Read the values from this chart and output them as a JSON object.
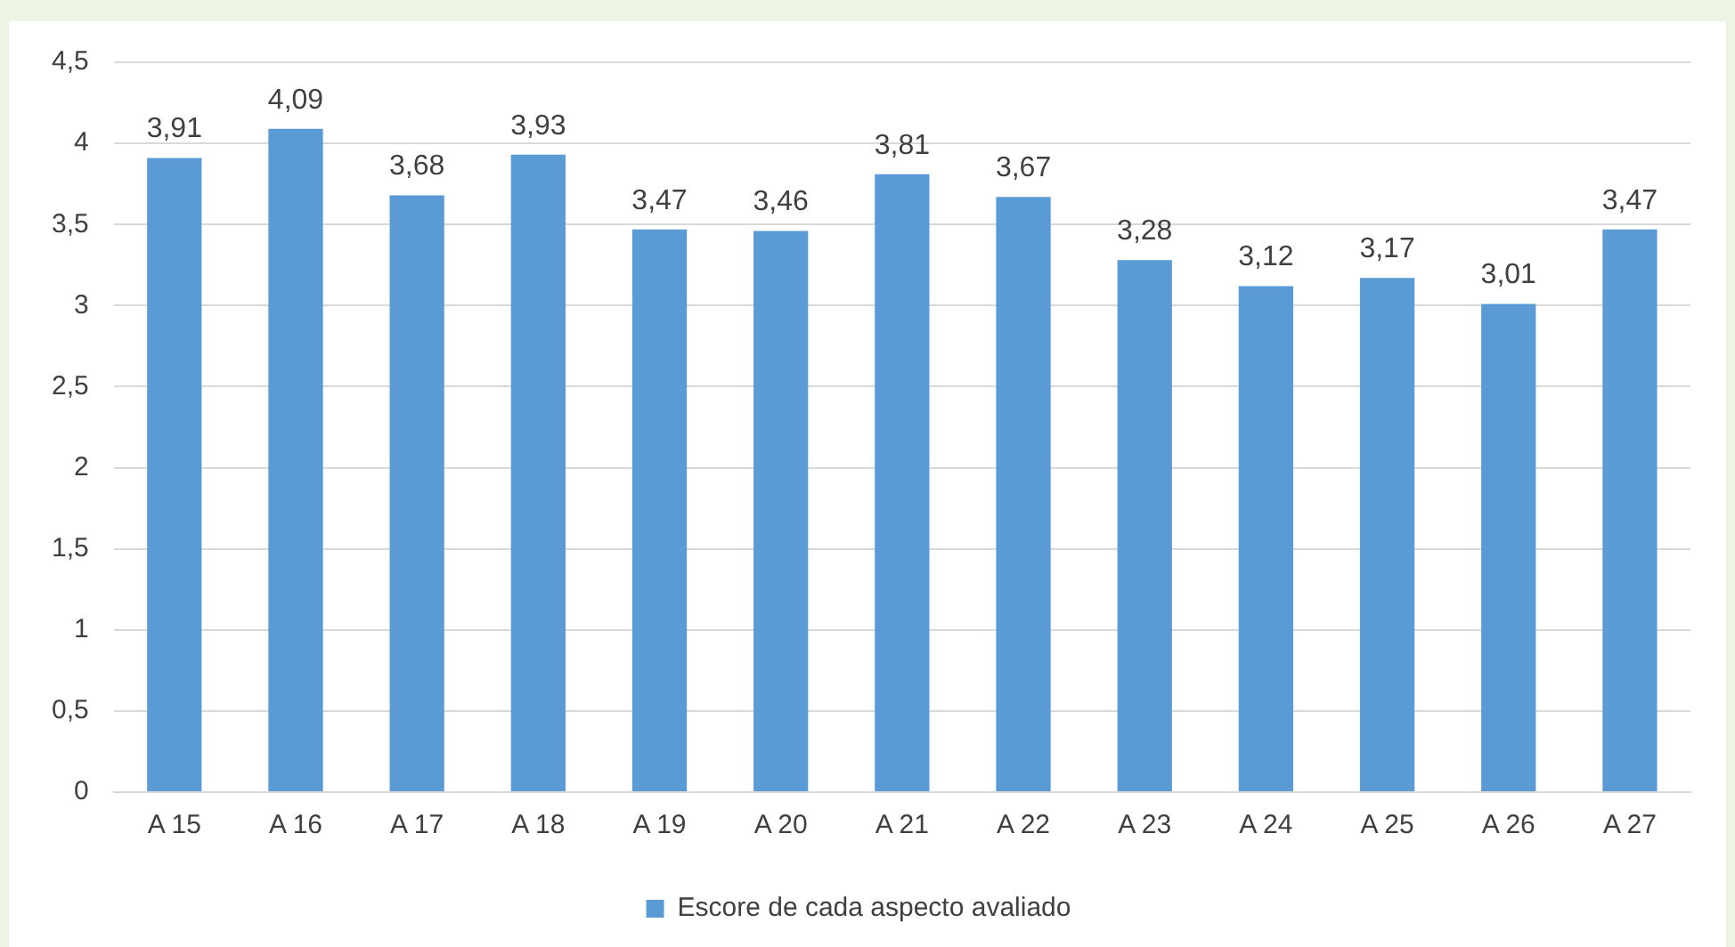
{
  "chart_data": {
    "type": "bar",
    "categories": [
      "A 15",
      "A 16",
      "A 17",
      "A 18",
      "A 19",
      "A 20",
      "A 21",
      "A 22",
      "A 23",
      "A 24",
      "A 25",
      "A 26",
      "A 27"
    ],
    "series": [
      {
        "name": "Escore de cada aspecto avaliado",
        "color": "#5b9bd5",
        "values": [
          3.91,
          4.09,
          3.68,
          3.93,
          3.47,
          3.46,
          3.81,
          3.67,
          3.28,
          3.12,
          3.17,
          3.01,
          3.47
        ],
        "value_labels": [
          "3,91",
          "4,09",
          "3,68",
          "3,93",
          "3,47",
          "3,46",
          "3,81",
          "3,67",
          "3,28",
          "3,12",
          "3,17",
          "3,01",
          "3,47"
        ]
      }
    ],
    "ylim": [
      0,
      4.5
    ],
    "yticks": [
      0,
      {
        "value": 0.5,
        "label": "0,5"
      },
      1,
      {
        "value": 1.5,
        "label": "1,5"
      },
      2,
      {
        "value": 2.5,
        "label": "2,5"
      },
      3,
      {
        "value": 3.5,
        "label": "3,5"
      },
      4,
      {
        "value": 4.5,
        "label": "4,5"
      }
    ],
    "grid": "y",
    "legend": "bottom"
  }
}
